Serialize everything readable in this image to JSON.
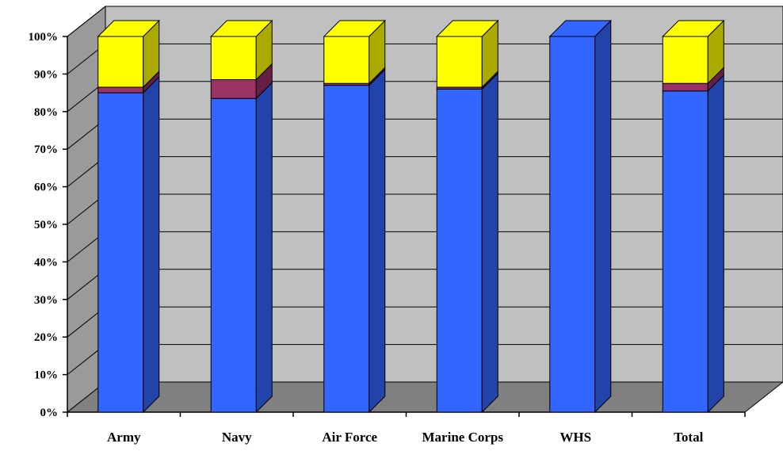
{
  "chart_data": {
    "type": "bar",
    "stacked": true,
    "percent": true,
    "three_d": true,
    "title": "",
    "xlabel": "",
    "ylabel": "",
    "ylim": [
      0,
      100
    ],
    "y_ticks": [
      "0%",
      "10%",
      "20%",
      "30%",
      "40%",
      "50%",
      "60%",
      "70%",
      "80%",
      "90%",
      "100%"
    ],
    "categories": [
      "Army",
      "Navy",
      "Air Force",
      "Marine Corps",
      "WHS",
      "Total"
    ],
    "series": [
      {
        "color": "#3366ff",
        "side_color": "#2244aa",
        "values": [
          85,
          83.5,
          87,
          86,
          100,
          85.5
        ]
      },
      {
        "color": "#993366",
        "side_color": "#661f44",
        "values": [
          1.5,
          5,
          0.5,
          0.5,
          0,
          2
        ]
      },
      {
        "color": "#ffff00",
        "side_color": "#aaaa00",
        "values": [
          13.5,
          11.5,
          12.5,
          13.5,
          0,
          12.5
        ]
      }
    ],
    "grid": true,
    "legend": "none",
    "wall_color": "#c0c0c0",
    "floor_color": "#808080"
  }
}
